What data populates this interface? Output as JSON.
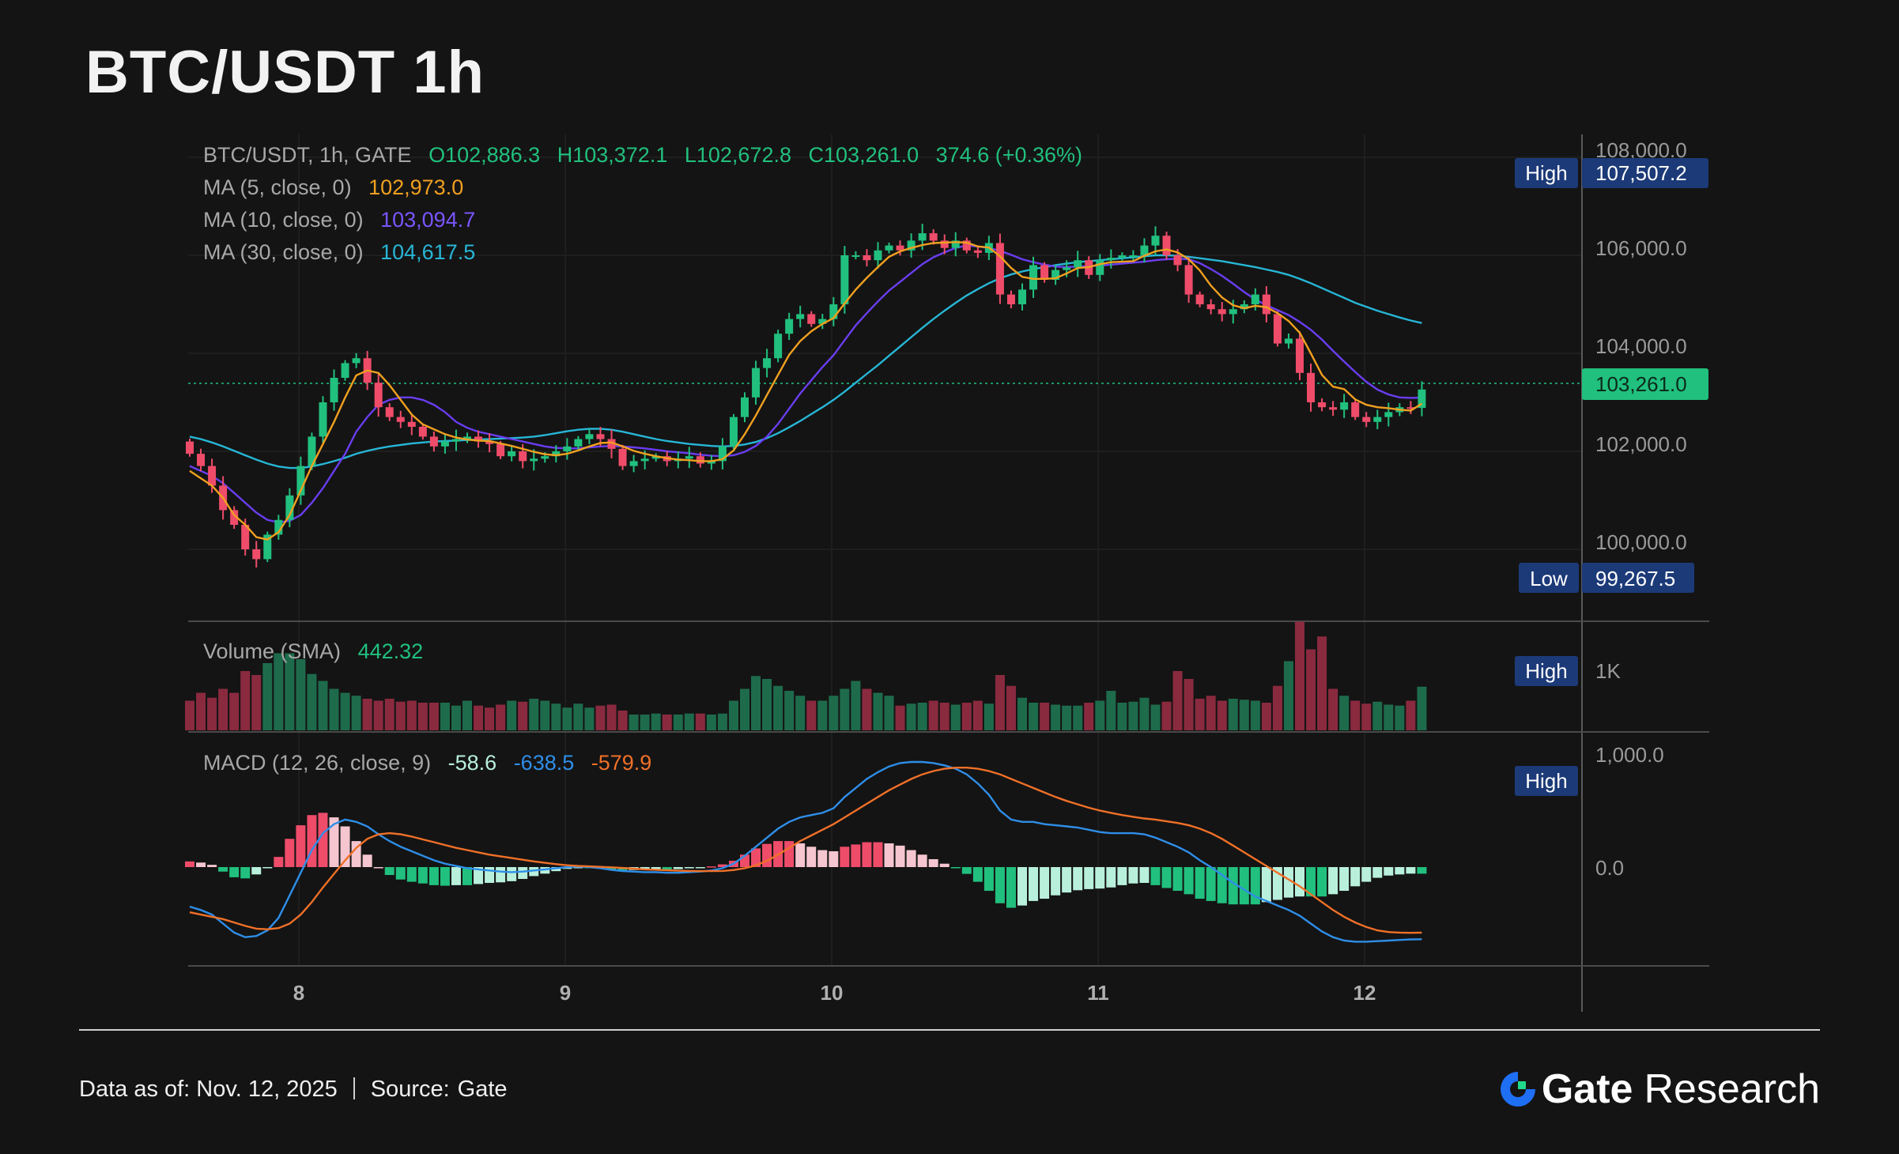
{
  "title": "BTC/USDT 1h",
  "header": {
    "symbol_line": "BTC/USDT, 1h, GATE",
    "open": "O102,886.3",
    "high": "H103,372.1",
    "low": "L102,672.8",
    "close": "C103,261.0",
    "change": "374.6 (+0.36%)",
    "ma5_label": "MA (5, close, 0)",
    "ma5_value": "102,973.0",
    "ma10_label": "MA (10, close, 0)",
    "ma10_value": "103,094.7",
    "ma30_label": "MA (30, close, 0)",
    "ma30_value": "104,617.5"
  },
  "price_badges": {
    "high_label": "High",
    "high_value": "107,507.2",
    "current_value": "103,261.0",
    "low_label": "Low",
    "low_value": "99,267.5"
  },
  "volume_panel": {
    "label": "Volume (SMA)",
    "value": "442.32",
    "high_label": "High",
    "axis_label": "1K"
  },
  "macd_panel": {
    "label": "MACD (12, 26, close, 9)",
    "hist_value": "-58.6",
    "macd_value": "-638.5",
    "signal_value": "-579.9",
    "high_label": "High"
  },
  "footer": {
    "data_as_of": "Data as of: Nov. 12, 2025",
    "source_label": "Source:",
    "source_value": "Gate",
    "brand_gate": "Gate",
    "brand_research": "Research"
  },
  "colors": {
    "background": "#141414",
    "up": "#21c07e",
    "down": "#ef4c6a",
    "ma5": "#f0a020",
    "ma10": "#6a3df0",
    "ma30": "#27b6d6",
    "macd": "#2f8ee8",
    "signal": "#f07028",
    "badge": "#1c3a78",
    "brand_icon": "#1f6ff5"
  },
  "chart_data": {
    "type": "candlestick",
    "x_tick_labels": [
      "8",
      "9",
      "10",
      "11",
      "12"
    ],
    "price_axis": {
      "ticks": [
        100000,
        102000,
        104000,
        106000,
        108000
      ],
      "tick_labels": [
        "100,000.0",
        "102,000.0",
        "104,000.0",
        "106,000.0",
        "108,000.0"
      ],
      "range": [
        98400,
        108400
      ]
    },
    "volume_axis": {
      "ticks": [
        1000
      ],
      "tick_labels": [
        "1K"
      ]
    },
    "macd_axis": {
      "ticks": [
        0,
        1000
      ],
      "tick_labels": [
        "0.0",
        "1,000.0"
      ],
      "range": [
        -1300,
        1150
      ]
    },
    "last_price": 103261.0,
    "period_high": 107507.2,
    "period_low": 99267.5,
    "closes": [
      101950,
      101700,
      101300,
      100800,
      100500,
      100000,
      99800,
      100300,
      100600,
      101100,
      101700,
      102300,
      103000,
      103500,
      103800,
      103900,
      103400,
      102900,
      102700,
      102600,
      102500,
      102300,
      102100,
      102200,
      102250,
      102300,
      102200,
      102150,
      101900,
      102000,
      101800,
      101850,
      101900,
      102000,
      102100,
      102250,
      102350,
      102250,
      102050,
      101700,
      101800,
      101850,
      101900,
      101800,
      101850,
      101900,
      101750,
      101800,
      102100,
      102700,
      103100,
      103700,
      103900,
      104400,
      104700,
      104800,
      104600,
      104700,
      105000,
      106000,
      106000,
      105900,
      106100,
      106200,
      106100,
      106300,
      106450,
      106300,
      106150,
      106300,
      106100,
      106050,
      106250,
      105200,
      105000,
      105300,
      105800,
      105500,
      105700,
      105750,
      105900,
      105600,
      105900,
      105950,
      106000,
      106000,
      106200,
      106400,
      106000,
      105800,
      105200,
      105000,
      104900,
      104800,
      104900,
      105000,
      105200,
      104800,
      104200,
      104300,
      103600,
      103000,
      102900,
      102850,
      103000,
      102700,
      102600,
      102700,
      102800,
      102900,
      102886,
      103261
    ],
    "ma5": [
      101600,
      101450,
      101300,
      101050,
      100700,
      100500,
      100250,
      100200,
      100350,
      100700,
      101200,
      101700,
      102150,
      102600,
      103100,
      103550,
      103650,
      103600,
      103350,
      103050,
      102750,
      102550,
      102450,
      102350,
      102280,
      102240,
      102220,
      102210,
      102160,
      102110,
      102050,
      101990,
      101940,
      101920,
      101950,
      102020,
      102100,
      102170,
      102180,
      102100,
      102010,
      101950,
      101900,
      101860,
      101830,
      101820,
      101800,
      101800,
      101840,
      102020,
      102350,
      102730,
      103150,
      103560,
      103970,
      104250,
      104450,
      104600,
      104720,
      105020,
      105300,
      105540,
      105760,
      105970,
      106080,
      106150,
      106210,
      106250,
      106260,
      106270,
      106260,
      106180,
      106160,
      105980,
      105740,
      105560,
      105520,
      105520,
      105530,
      105630,
      105740,
      105760,
      105820,
      105860,
      105870,
      105880,
      105990,
      106080,
      106120,
      106060,
      105920,
      105690,
      105380,
      105140,
      104980,
      104920,
      104970,
      104940,
      104820,
      104660,
      104420,
      104000,
      103560,
      103320,
      103270,
      103060,
      102950,
      102900,
      102880,
      102850,
      102830,
      102973
    ],
    "ma10": [
      101700,
      101600,
      101500,
      101350,
      101150,
      100950,
      100750,
      100600,
      100550,
      100580,
      100700,
      100950,
      101250,
      101600,
      101950,
      102400,
      102700,
      102950,
      103050,
      103100,
      103100,
      103050,
      102950,
      102800,
      102600,
      102480,
      102400,
      102350,
      102300,
      102250,
      102200,
      102150,
      102100,
      102070,
      102060,
      102060,
      102080,
      102100,
      102110,
      102100,
      102080,
      102060,
      102030,
      102000,
      101980,
      101960,
      101930,
      101910,
      101900,
      101920,
      101990,
      102110,
      102300,
      102560,
      102870,
      103180,
      103450,
      103720,
      103960,
      104270,
      104570,
      104820,
      105060,
      105280,
      105460,
      105640,
      105820,
      105960,
      106060,
      106150,
      106200,
      106180,
      106150,
      106090,
      106010,
      105920,
      105860,
      105810,
      105770,
      105760,
      105770,
      105780,
      105790,
      105810,
      105830,
      105850,
      105870,
      105900,
      105920,
      105930,
      105920,
      105840,
      105720,
      105580,
      105420,
      105250,
      105100,
      104980,
      104880,
      104780,
      104640,
      104480,
      104280,
      104050,
      103830,
      103620,
      103420,
      103260,
      103160,
      103100,
      103090,
      103095
    ],
    "ma30": [
      102300,
      102250,
      102180,
      102100,
      102010,
      101920,
      101830,
      101750,
      101690,
      101660,
      101660,
      101690,
      101740,
      101800,
      101870,
      101950,
      102010,
      102060,
      102100,
      102130,
      102160,
      102180,
      102200,
      102210,
      102220,
      102230,
      102240,
      102250,
      102260,
      102270,
      102280,
      102300,
      102330,
      102370,
      102410,
      102440,
      102460,
      102460,
      102440,
      102400,
      102350,
      102300,
      102250,
      102210,
      102180,
      102150,
      102130,
      102110,
      102100,
      102110,
      102140,
      102190,
      102270,
      102370,
      102490,
      102620,
      102760,
      102900,
      103050,
      103220,
      103400,
      103580,
      103760,
      103950,
      104140,
      104330,
      104520,
      104700,
      104870,
      105030,
      105180,
      105310,
      105430,
      105530,
      105610,
      105670,
      105720,
      105760,
      105800,
      105830,
      105860,
      105880,
      105900,
      105920,
      105940,
      105960,
      105980,
      106000,
      106000,
      105990,
      105970,
      105940,
      105910,
      105880,
      105840,
      105800,
      105760,
      105710,
      105660,
      105600,
      105520,
      105430,
      105330,
      105230,
      105130,
      105030,
      104950,
      104870,
      104800,
      104730,
      104670,
      104617
    ],
    "volume": [
      300,
      380,
      330,
      420,
      380,
      600,
      560,
      680,
      780,
      780,
      720,
      570,
      500,
      420,
      380,
      350,
      320,
      300,
      320,
      290,
      300,
      280,
      280,
      280,
      250,
      300,
      250,
      230,
      260,
      300,
      290,
      320,
      300,
      270,
      230,
      270,
      230,
      250,
      260,
      200,
      160,
      160,
      170,
      160,
      160,
      170,
      170,
      160,
      170,
      300,
      420,
      550,
      520,
      450,
      400,
      350,
      300,
      300,
      350,
      420,
      500,
      420,
      380,
      350,
      250,
      270,
      280,
      300,
      280,
      260,
      280,
      300,
      270,
      560,
      450,
      330,
      280,
      280,
      260,
      250,
      250,
      280,
      300,
      400,
      280,
      290,
      330,
      260,
      290,
      600,
      520,
      320,
      350,
      300,
      320,
      310,
      300,
      280,
      450,
      700,
      1100,
      820,
      950,
      420,
      350,
      300,
      270,
      290,
      260,
      250,
      300,
      442
    ],
    "macd": [
      -350,
      -380,
      -420,
      -500,
      -580,
      -620,
      -610,
      -560,
      -450,
      -250,
      -50,
      150,
      300,
      380,
      420,
      400,
      360,
      290,
      230,
      180,
      140,
      100,
      60,
      30,
      10,
      -10,
      -20,
      -30,
      -40,
      -45,
      -40,
      -30,
      -20,
      -10,
      0,
      5,
      0,
      -10,
      -25,
      -35,
      -40,
      -45,
      -45,
      -50,
      -50,
      -45,
      -40,
      -30,
      -10,
      30,
      100,
      180,
      260,
      340,
      400,
      440,
      460,
      480,
      520,
      620,
      700,
      780,
      840,
      890,
      920,
      930,
      930,
      920,
      900,
      870,
      820,
      740,
      640,
      500,
      420,
      400,
      400,
      380,
      370,
      360,
      350,
      330,
      310,
      300,
      300,
      300,
      290,
      260,
      220,
      180,
      130,
      60,
      0,
      -70,
      -140,
      -200,
      -260,
      -300,
      -340,
      -380,
      -430,
      -500,
      -570,
      -620,
      -650,
      -660,
      -660,
      -655,
      -650,
      -645,
      -640,
      -638.5
    ],
    "signal": [
      -400,
      -420,
      -440,
      -460,
      -490,
      -520,
      -545,
      -550,
      -540,
      -500,
      -420,
      -310,
      -180,
      -60,
      60,
      170,
      250,
      290,
      300,
      290,
      270,
      245,
      220,
      195,
      170,
      150,
      130,
      110,
      95,
      80,
      65,
      50,
      38,
      26,
      16,
      10,
      6,
      2,
      -2,
      -8,
      -14,
      -20,
      -24,
      -28,
      -32,
      -34,
      -36,
      -36,
      -34,
      -26,
      -10,
      15,
      55,
      110,
      170,
      230,
      280,
      330,
      380,
      440,
      500,
      560,
      620,
      680,
      730,
      780,
      820,
      850,
      870,
      880,
      880,
      870,
      850,
      820,
      780,
      740,
      700,
      660,
      620,
      585,
      555,
      525,
      500,
      480,
      460,
      445,
      430,
      420,
      405,
      390,
      370,
      340,
      300,
      250,
      190,
      130,
      70,
      10,
      -50,
      -110,
      -170,
      -240,
      -310,
      -380,
      -440,
      -490,
      -530,
      -560,
      -575,
      -580,
      -582,
      -579.9
    ]
  }
}
